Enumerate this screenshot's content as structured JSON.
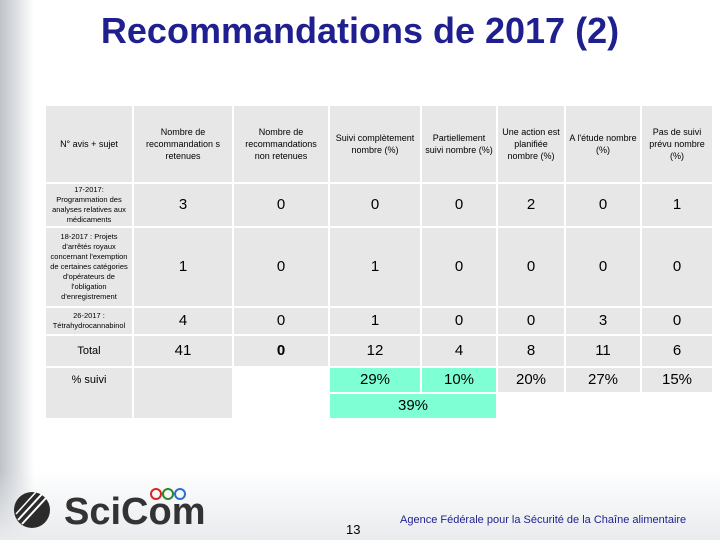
{
  "title": "Recommandations de 2017 (2)",
  "table": {
    "headers": [
      "N° avis + sujet",
      "Nombre de recommandation s retenues",
      "Nombre de recommandations non retenues",
      "Suivi complètement nombre (%)",
      "Partiellement suivi nombre (%)",
      "Une action est planifiée nombre (%)",
      "A l'étude nombre (%)",
      "Pas de suivi prévu nombre (%)"
    ],
    "rows": [
      {
        "label": "17-2017: Programmation des analyses relatives aux médicaments",
        "values": [
          "3",
          "0",
          "0",
          "0",
          "2",
          "0",
          "1"
        ]
      },
      {
        "label": "18-2017 : Projets d'arrêtés royaux concernant l'exemption de certaines catégories d'opérateurs de l'obligation d'enregistrement",
        "values": [
          "1",
          "0",
          "1",
          "0",
          "0",
          "0",
          "0"
        ]
      },
      {
        "label": "26-2017 : Tétrahydrocannabinol",
        "values": [
          "4",
          "0",
          "1",
          "0",
          "0",
          "3",
          "0"
        ]
      }
    ],
    "total": {
      "label": "Total",
      "values": [
        "41",
        "0",
        "12",
        "4",
        "8",
        "11",
        "6"
      ]
    },
    "percent": {
      "label": "% suivi",
      "suivi": "29%",
      "partiel": "10%",
      "combined": "39%",
      "planifiee": "20%",
      "etude": "27%",
      "pas_suivi": "15%"
    }
  },
  "footer": {
    "logo_text": "SciCom",
    "page_number": "13",
    "agency": "Agence Fédérale pour la Sécurité de la Chaîne alimentaire"
  },
  "colors": {
    "title": "#1f1f8f",
    "highlight": "#7fffd4",
    "cell": "#e7e7e7"
  }
}
